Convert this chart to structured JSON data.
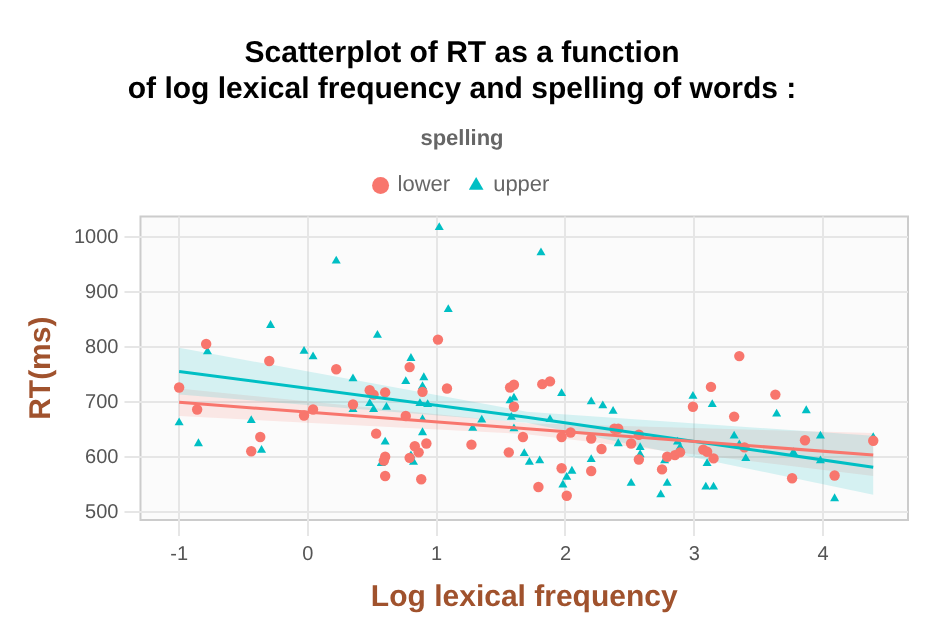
{
  "chart_data": {
    "type": "scatter",
    "title": "Scatterplot of RT as a function\nof log lexical frequency and spelling of words :",
    "xlabel": "Log lexical frequency",
    "ylabel": "RT(ms)",
    "legend_title": "spelling",
    "legend": "top",
    "grid": true,
    "xlim": [
      -1.3,
      4.66
    ],
    "xticks": [
      -1,
      0,
      1,
      2,
      3,
      4
    ],
    "ylim": [
      486,
      1038
    ],
    "yticks": [
      500,
      600,
      700,
      800,
      900,
      1000
    ],
    "series": [
      {
        "name": "lower",
        "color": "#f8766d",
        "marker": "circle",
        "x": [
          -1.0,
          -0.86,
          -0.79,
          -0.44,
          -0.37,
          -0.3,
          -0.03,
          0.04,
          0.22,
          0.35,
          0.48,
          0.51,
          0.53,
          0.6,
          0.6,
          0.6,
          0.59,
          0.76,
          0.79,
          0.79,
          0.83,
          0.86,
          0.89,
          0.88,
          0.92,
          1.01,
          1.08,
          1.27,
          1.56,
          1.57,
          1.6,
          1.6,
          1.67,
          1.82,
          1.88,
          1.97,
          1.97,
          2.01,
          2.04,
          2.2,
          2.2,
          1.79,
          2.28,
          2.38,
          2.41,
          2.51,
          2.57,
          2.57,
          2.75,
          2.79,
          2.85,
          2.89,
          2.99,
          3.07,
          3.1,
          3.13,
          3.15,
          3.31,
          3.35,
          3.39,
          3.63,
          3.76,
          3.86,
          4.09,
          4.39
        ],
        "values": [
          727,
          687,
          806,
          611,
          637,
          775,
          676,
          687,
          760,
          696,
          722,
          714,
          643,
          718,
          601,
          566,
          594,
          675,
          764,
          599,
          620,
          609,
          719,
          560,
          625,
          814,
          725,
          623,
          609,
          727,
          732,
          692,
          637,
          733,
          738,
          637,
          580,
          530,
          645,
          634,
          575,
          546,
          615,
          652,
          652,
          625,
          641,
          596,
          578,
          601,
          604,
          609,
          692,
          614,
          610,
          728,
          598,
          674,
          784,
          618,
          714,
          562,
          631,
          567,
          630
        ]
      },
      {
        "name": "upper",
        "color": "#00bfc4",
        "marker": "triangle",
        "x": [
          -1.0,
          -0.85,
          -0.78,
          -0.44,
          -0.36,
          -0.29,
          -0.03,
          0.04,
          0.22,
          0.35,
          0.35,
          0.48,
          0.51,
          0.54,
          0.6,
          0.61,
          0.57,
          0.76,
          0.8,
          0.8,
          0.82,
          0.87,
          0.89,
          0.9,
          0.89,
          0.89,
          0.93,
          1.02,
          1.09,
          1.28,
          1.35,
          1.57,
          1.6,
          1.58,
          1.6,
          1.68,
          1.72,
          1.81,
          1.8,
          1.88,
          1.97,
          1.98,
          2.01,
          2.05,
          2.2,
          2.2,
          2.29,
          2.37,
          2.41,
          2.51,
          2.58,
          2.58,
          2.74,
          2.79,
          2.77,
          2.87,
          2.89,
          2.99,
          3.1,
          3.09,
          3.15,
          3.14,
          3.31,
          3.35,
          3.4,
          3.64,
          3.77,
          3.87,
          3.98,
          3.98,
          4.09,
          4.39
        ],
        "values": [
          663,
          625,
          792,
          667,
          613,
          840,
          793,
          783,
          957,
          743,
          687,
          698,
          687,
          822,
          628,
          691,
          589,
          738,
          780,
          603,
          591,
          698,
          729,
          745,
          669,
          645,
          696,
          1018,
          869,
          653,
          668,
          703,
          708,
          673,
          652,
          607,
          591,
          972,
          594,
          669,
          716,
          550,
          564,
          575,
          596,
          701,
          694,
          684,
          625,
          553,
          618,
          605,
          532,
          553,
          594,
          628,
          618,
          711,
          589,
          546,
          546,
          696,
          639,
          623,
          598,
          679,
          609,
          685,
          639,
          594,
          525,
          636
        ]
      },
      {
        "type": "line",
        "color": "#f8766d",
        "x": [
          -1,
          1.7,
          4.39
        ],
        "values": [
          700,
          652,
          604
        ],
        "lower": [
          675,
          642,
          566
        ],
        "upper": [
          725,
          662,
          644
        ]
      },
      {
        "type": "line",
        "color": "#00bfc4",
        "x": [
          -1,
          1.7,
          4.39
        ],
        "values": [
          756,
          673,
          582
        ],
        "lower": [
          714,
          663,
          532
        ],
        "upper": [
          799,
          683,
          639
        ]
      }
    ]
  }
}
